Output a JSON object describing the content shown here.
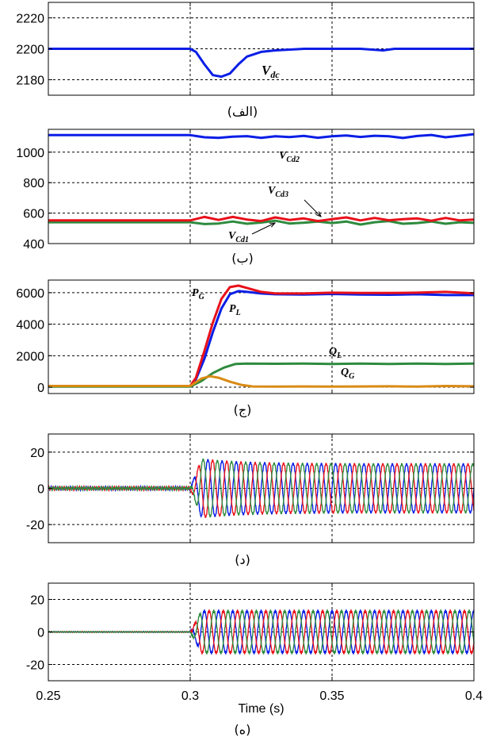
{
  "figure": {
    "x_axis": {
      "label": "Time (s)",
      "ticks": [
        "0.25",
        "0.3",
        "0.35",
        "0.4"
      ],
      "range": [
        0.25,
        0.4
      ]
    },
    "event_time": 0.3
  },
  "chart_data": [
    {
      "id": "a",
      "caption": "(الف)",
      "type": "line",
      "ylim": [
        2170,
        2230
      ],
      "yticks": [
        "2180",
        "2200",
        "2220"
      ],
      "annotations": [
        {
          "base": "V",
          "sub": "dc"
        }
      ],
      "series": [
        {
          "color": "#0a1ee6",
          "points": [
            [
              0.25,
              2200
            ],
            [
              0.3,
              2200
            ],
            [
              0.302,
              2198
            ],
            [
              0.305,
              2190
            ],
            [
              0.308,
              2183
            ],
            [
              0.311,
              2182
            ],
            [
              0.314,
              2184
            ],
            [
              0.317,
              2190
            ],
            [
              0.32,
              2195
            ],
            [
              0.325,
              2198
            ],
            [
              0.33,
              2199
            ],
            [
              0.34,
              2200
            ],
            [
              0.36,
              2200
            ],
            [
              0.368,
              2199
            ],
            [
              0.372,
              2200
            ],
            [
              0.4,
              2200
            ]
          ]
        }
      ]
    },
    {
      "id": "b",
      "caption": "(ب)",
      "type": "line",
      "ylim": [
        400,
        1150
      ],
      "yticks": [
        "400",
        "600",
        "800",
        "1000"
      ],
      "annotations": [
        {
          "base": "V",
          "sub": "Cd2"
        },
        {
          "base": "V",
          "sub": "Cd3"
        },
        {
          "base": "V",
          "sub": "Cd1"
        }
      ],
      "series": [
        {
          "color": "#0a1ee6",
          "points": [
            [
              0.25,
              1112
            ],
            [
              0.3,
              1112
            ],
            [
              0.305,
              1098
            ],
            [
              0.31,
              1094
            ],
            [
              0.315,
              1102
            ],
            [
              0.32,
              1105
            ],
            [
              0.325,
              1094
            ],
            [
              0.33,
              1104
            ],
            [
              0.335,
              1099
            ],
            [
              0.34,
              1107
            ],
            [
              0.345,
              1095
            ],
            [
              0.35,
              1104
            ],
            [
              0.355,
              1110
            ],
            [
              0.36,
              1100
            ],
            [
              0.365,
              1108
            ],
            [
              0.37,
              1104
            ],
            [
              0.375,
              1093
            ],
            [
              0.38,
              1106
            ],
            [
              0.385,
              1113
            ],
            [
              0.39,
              1098
            ],
            [
              0.395,
              1108
            ],
            [
              0.4,
              1118
            ]
          ]
        },
        {
          "color": "#2e8b3e",
          "points": [
            [
              0.25,
              540
            ],
            [
              0.3,
              540
            ],
            [
              0.305,
              528
            ],
            [
              0.31,
              532
            ],
            [
              0.315,
              545
            ],
            [
              0.32,
              530
            ],
            [
              0.325,
              538
            ],
            [
              0.33,
              550
            ],
            [
              0.335,
              532
            ],
            [
              0.34,
              537
            ],
            [
              0.345,
              545
            ],
            [
              0.35,
              535
            ],
            [
              0.355,
              545
            ],
            [
              0.36,
              525
            ],
            [
              0.365,
              540
            ],
            [
              0.37,
              548
            ],
            [
              0.375,
              530
            ],
            [
              0.38,
              535
            ],
            [
              0.385,
              545
            ],
            [
              0.39,
              530
            ],
            [
              0.395,
              540
            ],
            [
              0.4,
              536
            ]
          ]
        },
        {
          "color": "#e8101a",
          "points": [
            [
              0.25,
              552
            ],
            [
              0.3,
              552
            ],
            [
              0.305,
              575
            ],
            [
              0.31,
              555
            ],
            [
              0.315,
              575
            ],
            [
              0.32,
              558
            ],
            [
              0.325,
              548
            ],
            [
              0.33,
              572
            ],
            [
              0.335,
              555
            ],
            [
              0.34,
              565
            ],
            [
              0.345,
              548
            ],
            [
              0.35,
              560
            ],
            [
              0.355,
              572
            ],
            [
              0.36,
              552
            ],
            [
              0.365,
              568
            ],
            [
              0.37,
              553
            ],
            [
              0.375,
              560
            ],
            [
              0.38,
              565
            ],
            [
              0.385,
              550
            ],
            [
              0.39,
              568
            ],
            [
              0.395,
              552
            ],
            [
              0.4,
              558
            ]
          ]
        }
      ]
    },
    {
      "id": "c",
      "caption": "(ج)",
      "type": "line",
      "ylim": [
        -400,
        6800
      ],
      "yticks": [
        "0",
        "2000",
        "4000",
        "6000"
      ],
      "annotations": [
        {
          "base": "P",
          "sub": "G"
        },
        {
          "base": "P",
          "sub": "L"
        },
        {
          "base": "Q",
          "sub": "L"
        },
        {
          "base": "Q",
          "sub": "G"
        }
      ],
      "series": [
        {
          "color": "#0a1ee6",
          "points": [
            [
              0.25,
              80
            ],
            [
              0.3,
              80
            ],
            [
              0.302,
              500
            ],
            [
              0.305,
              1800
            ],
            [
              0.308,
              3500
            ],
            [
              0.311,
              5000
            ],
            [
              0.314,
              5900
            ],
            [
              0.317,
              6100
            ],
            [
              0.32,
              6050
            ],
            [
              0.325,
              5950
            ],
            [
              0.33,
              5900
            ],
            [
              0.34,
              5880
            ],
            [
              0.35,
              5920
            ],
            [
              0.36,
              5880
            ],
            [
              0.37,
              5870
            ],
            [
              0.38,
              5900
            ],
            [
              0.39,
              5850
            ],
            [
              0.4,
              5850
            ]
          ]
        },
        {
          "color": "#e8101a",
          "points": [
            [
              0.25,
              80
            ],
            [
              0.3,
              80
            ],
            [
              0.302,
              600
            ],
            [
              0.305,
              2300
            ],
            [
              0.308,
              4100
            ],
            [
              0.311,
              5600
            ],
            [
              0.314,
              6350
            ],
            [
              0.317,
              6450
            ],
            [
              0.32,
              6300
            ],
            [
              0.325,
              6050
            ],
            [
              0.33,
              5950
            ],
            [
              0.34,
              5950
            ],
            [
              0.35,
              6000
            ],
            [
              0.36,
              5980
            ],
            [
              0.37,
              5980
            ],
            [
              0.38,
              6000
            ],
            [
              0.39,
              6050
            ],
            [
              0.4,
              5960
            ]
          ]
        },
        {
          "color": "#2e8b3e",
          "points": [
            [
              0.25,
              40
            ],
            [
              0.3,
              40
            ],
            [
              0.304,
              400
            ],
            [
              0.308,
              900
            ],
            [
              0.312,
              1250
            ],
            [
              0.316,
              1480
            ],
            [
              0.32,
              1500
            ],
            [
              0.33,
              1490
            ],
            [
              0.34,
              1500
            ],
            [
              0.35,
              1480
            ],
            [
              0.36,
              1500
            ],
            [
              0.37,
              1480
            ],
            [
              0.38,
              1500
            ],
            [
              0.39,
              1480
            ],
            [
              0.4,
              1500
            ]
          ]
        },
        {
          "color": "#d98a14",
          "points": [
            [
              0.25,
              80
            ],
            [
              0.3,
              80
            ],
            [
              0.304,
              550
            ],
            [
              0.307,
              700
            ],
            [
              0.31,
              600
            ],
            [
              0.314,
              350
            ],
            [
              0.318,
              150
            ],
            [
              0.322,
              50
            ],
            [
              0.33,
              40
            ],
            [
              0.34,
              50
            ],
            [
              0.35,
              40
            ],
            [
              0.36,
              50
            ],
            [
              0.37,
              60
            ],
            [
              0.38,
              40
            ],
            [
              0.39,
              80
            ],
            [
              0.4,
              60
            ]
          ]
        }
      ]
    },
    {
      "id": "d",
      "caption": "(د)",
      "type": "line",
      "ylim": [
        -30,
        30
      ],
      "yticks": [
        "-20",
        "0",
        "20"
      ],
      "annotations": [],
      "waveform": {
        "pre_amplitude": 1.2,
        "post_amplitude": 13.5,
        "overshoot": 17,
        "frequency_hz": 200,
        "onset": 0.3
      },
      "series": [
        {
          "color": "#0a1ee6",
          "phase_deg": 0
        },
        {
          "color": "#e8101a",
          "phase_deg": -120
        },
        {
          "color": "#2e8b3e",
          "phase_deg": 120
        }
      ]
    },
    {
      "id": "e",
      "caption": "(ه)",
      "type": "line",
      "ylim": [
        -30,
        30
      ],
      "yticks": [
        "-20",
        "0",
        "20"
      ],
      "annotations": [],
      "waveform": {
        "pre_amplitude": 0.4,
        "post_amplitude": 13,
        "overshoot": 13,
        "frequency_hz": 200,
        "onset": 0.3
      },
      "series": [
        {
          "color": "#0a1ee6",
          "phase_deg": 90
        },
        {
          "color": "#e8101a",
          "phase_deg": -30
        },
        {
          "color": "#2e8b3e",
          "phase_deg": 210
        }
      ]
    }
  ]
}
